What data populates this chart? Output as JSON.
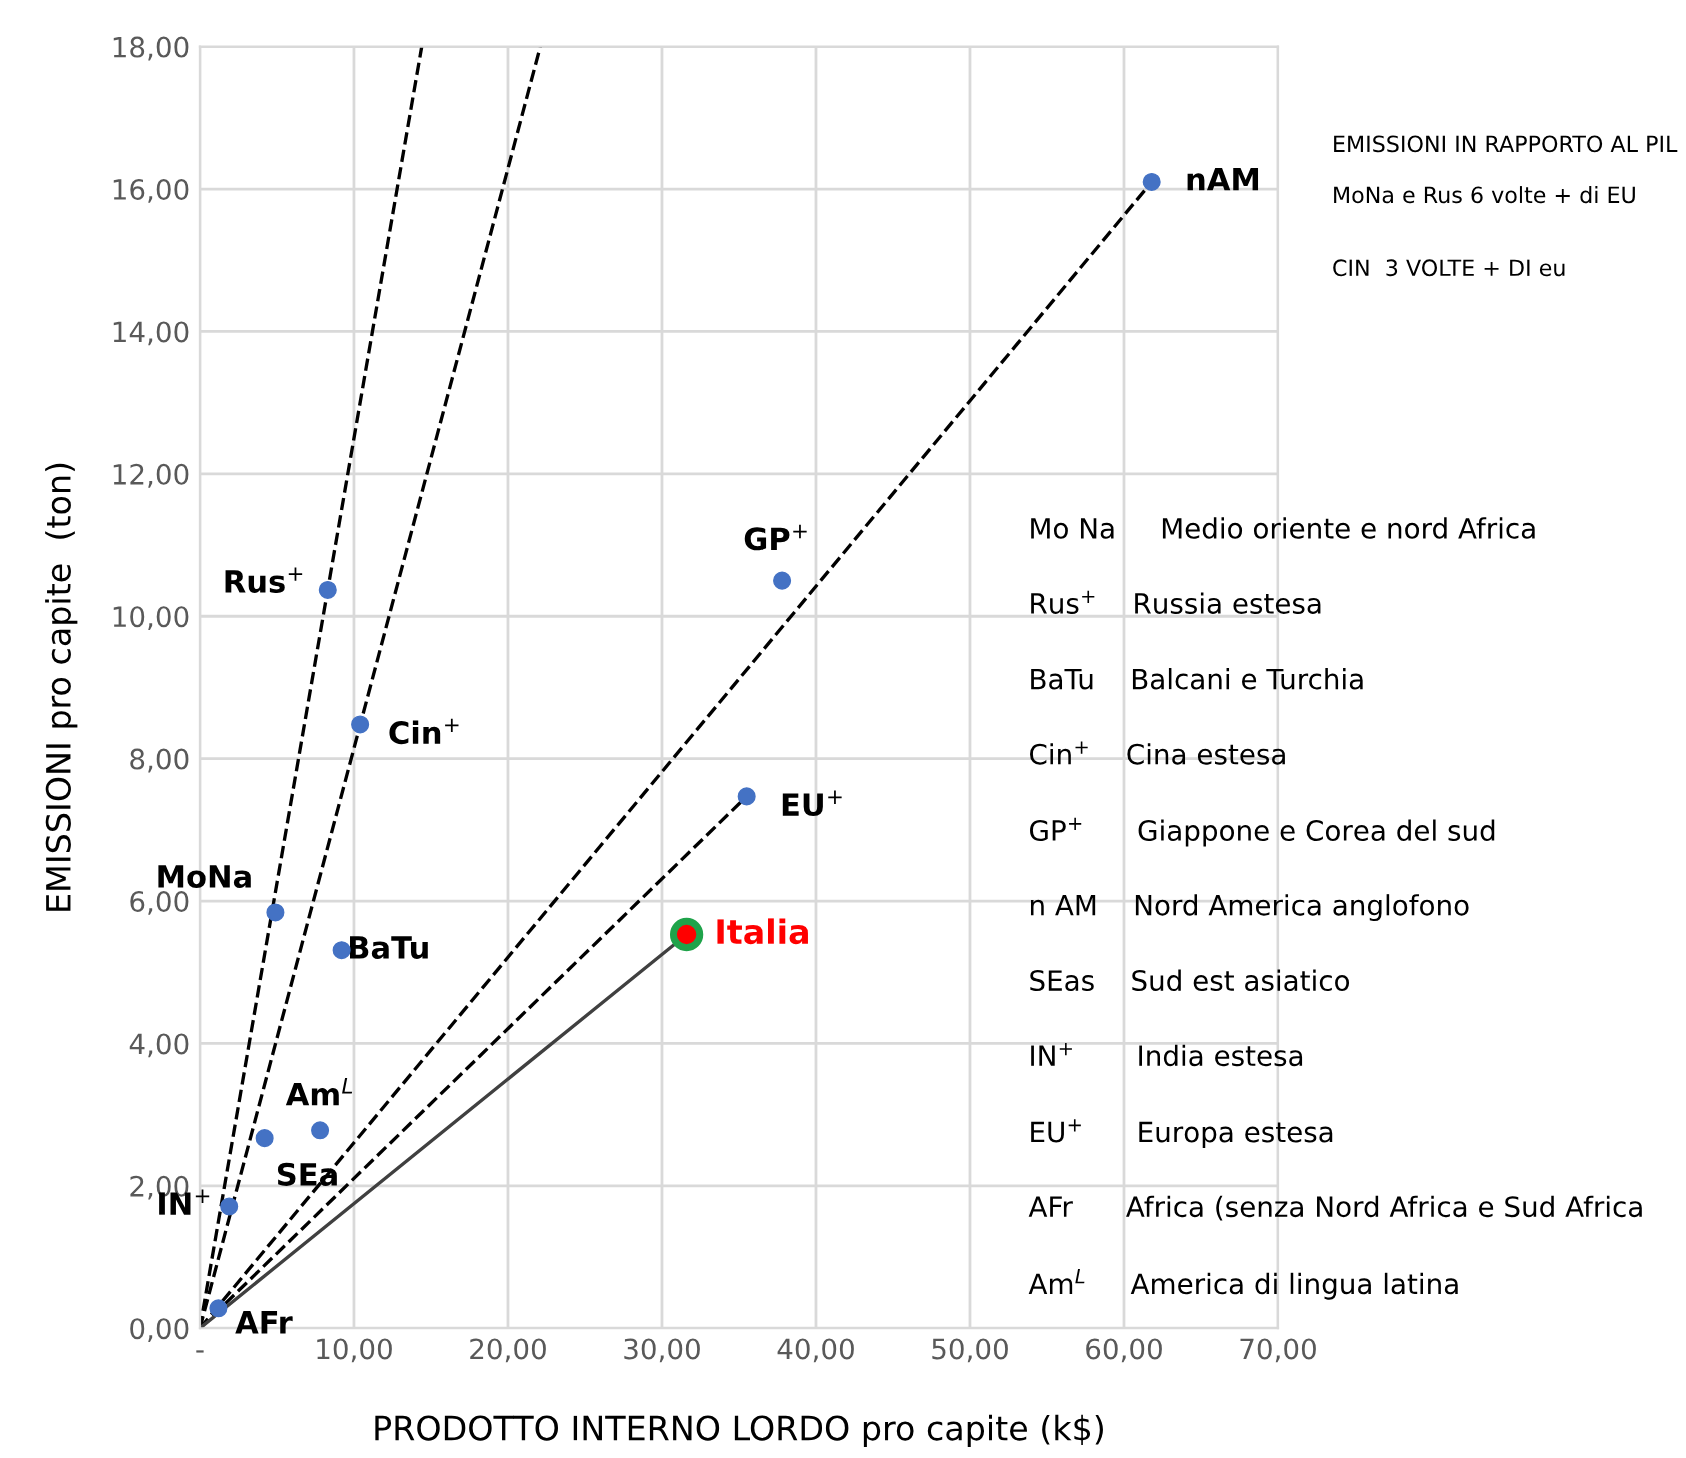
{
  "chart_data": {
    "type": "scatter",
    "xlabel": "PRODOTTO INTERNO LORDO pro capite (k$)",
    "ylabel": "EMISSIONI pro capite  (ton)",
    "xlim": [
      0,
      70
    ],
    "ylim": [
      0,
      18
    ],
    "xticks": [
      {
        "value": 0,
        "label": "-"
      },
      {
        "value": 10,
        "label": "10,00"
      },
      {
        "value": 20,
        "label": "20,00"
      },
      {
        "value": 30,
        "label": "30,00"
      },
      {
        "value": 40,
        "label": "40,00"
      },
      {
        "value": 50,
        "label": "50,00"
      },
      {
        "value": 60,
        "label": "60,00"
      },
      {
        "value": 70,
        "label": "70,00"
      }
    ],
    "yticks": [
      {
        "value": 0,
        "label": "0,00"
      },
      {
        "value": 2,
        "label": "2,00"
      },
      {
        "value": 4,
        "label": "4,00"
      },
      {
        "value": 6,
        "label": "6,00"
      },
      {
        "value": 8,
        "label": "8,00"
      },
      {
        "value": 10,
        "label": "10,00"
      },
      {
        "value": 12,
        "label": "12,00"
      },
      {
        "value": 14,
        "label": "14,00"
      },
      {
        "value": 16,
        "label": "16,00"
      },
      {
        "value": 18,
        "label": "18,00"
      }
    ],
    "grid": true,
    "series": [
      {
        "type": "line",
        "color": "#000000",
        "line_style": "dashed",
        "x": [
          0,
          14.4
        ],
        "values": [
          0,
          18
        ]
      },
      {
        "type": "line",
        "color": "#000000",
        "line_style": "dashed",
        "x": [
          0,
          22.1
        ],
        "values": [
          0,
          18
        ]
      },
      {
        "type": "line",
        "color": "#000000",
        "line_style": "dashed",
        "x": [
          0,
          61.8
        ],
        "values": [
          0,
          16.1
        ]
      },
      {
        "type": "line",
        "color": "#000000",
        "line_style": "dashed",
        "x": [
          0,
          35.5
        ],
        "values": [
          0,
          7.47
        ]
      },
      {
        "type": "line",
        "color": "#404040",
        "line_style": "solid",
        "x": [
          0,
          31.6
        ],
        "values": [
          0,
          5.53
        ]
      },
      {
        "marker": "circle",
        "color": "#4472c4",
        "x": [
          61.8,
          37.8,
          8.3,
          10.4,
          35.5,
          4.9,
          9.2,
          7.8,
          4.2,
          1.9,
          1.2
        ],
        "values": [
          16.1,
          10.5,
          10.37,
          8.48,
          7.47,
          5.84,
          5.31,
          2.78,
          2.67,
          1.71,
          0.28
        ]
      },
      {
        "marker": "circle",
        "name": "Italia",
        "color": "#ff0000",
        "x": [
          31.6
        ],
        "values": [
          5.53
        ]
      }
    ],
    "annotations": [
      {
        "text": "nAM",
        "x": 61.8,
        "y": 16.1
      },
      {
        "text": "GP$^{+}$",
        "x": 37.8,
        "y": 10.5
      },
      {
        "text": "Rus$^{+}$",
        "x": 8.3,
        "y": 10.37
      },
      {
        "text": "Cin$^{+}$",
        "x": 10.4,
        "y": 8.48
      },
      {
        "text": "EU$^{+}$",
        "x": 35.5,
        "y": 7.47
      },
      {
        "text": "MoNa",
        "x": 4.9,
        "y": 5.84
      },
      {
        "text": "BaTu",
        "x": 9.2,
        "y": 5.31
      },
      {
        "text": "Am$^{L}$",
        "x": 7.8,
        "y": 2.78
      },
      {
        "text": "SEa",
        "x": 4.2,
        "y": 2.67
      },
      {
        "text": "IN$^{+}$",
        "x": 1.9,
        "y": 1.71
      },
      {
        "text": "AFr",
        "x": 1.2,
        "y": 0.28
      },
      "EMISSIONI IN RAPPORTO AL PIL",
      "MoNa e Rus 6 volte + di EU",
      "CIN  3 VOLTE + DI eu",
      "Mo Na     Medio oriente e nord Africa",
      "Rus$^{+}$    Russia estesa",
      "BaTu    Balcani e Turchia",
      "Cin$^{+}$    Cina estesa",
      "GP$^{+}$      Giappone e Corea del sud",
      "n AM    Nord America anglofono",
      "SEas    Sud est asiatico",
      "IN$^{+}$       India estesa",
      "EU$^{+}$      Europa estesa",
      "AFr      Africa (senza Nord Africa e Sud Africa",
      "Am$^{L}$     America di lingua latina"
    ]
  }
}
